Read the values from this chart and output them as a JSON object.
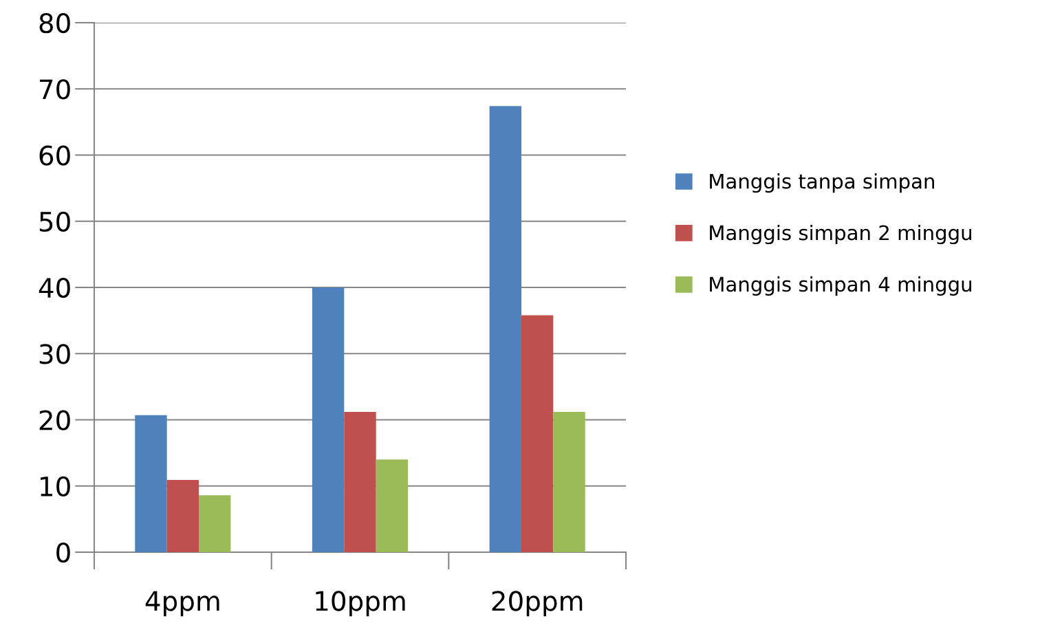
{
  "chart_data": {
    "type": "bar",
    "categories": [
      "4ppm",
      "10ppm",
      "20ppm"
    ],
    "series": [
      {
        "name": "Manggis tanpa simpan",
        "color": "#4f81bd",
        "values": [
          20.7,
          40.0,
          67.4
        ]
      },
      {
        "name": "Manggis simpan 2 minggu",
        "color": "#c0504d",
        "values": [
          10.9,
          21.2,
          35.8
        ]
      },
      {
        "name": "Manggis simpan 4 minggu",
        "color": "#9bbb59",
        "values": [
          8.6,
          14.0,
          21.2
        ]
      }
    ],
    "ylim": [
      0,
      80
    ],
    "yticks": [
      0,
      10,
      20,
      30,
      40,
      50,
      60,
      70,
      80
    ],
    "grid": "y",
    "legend": "right"
  }
}
